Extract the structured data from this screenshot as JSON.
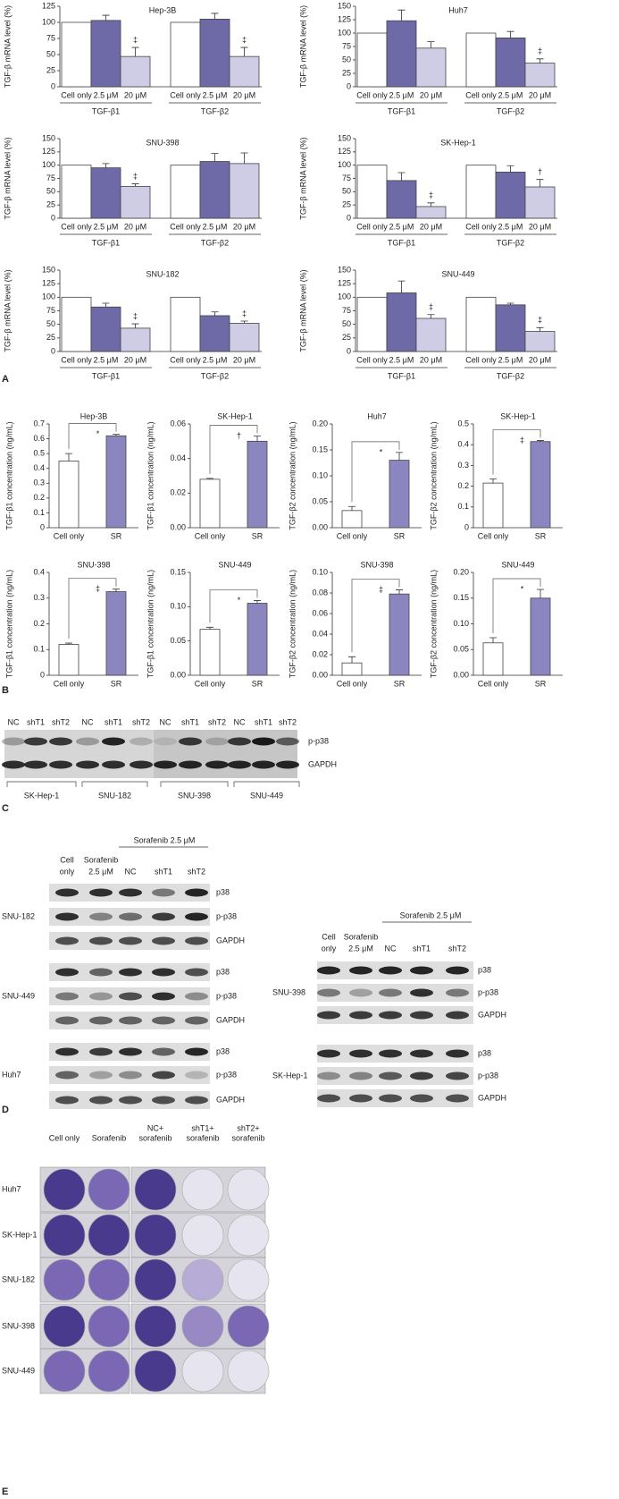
{
  "chart_data": [
    {
      "type": "bar",
      "title": "Hep-3B",
      "ylabel": "TGF-β mRNA level (%)",
      "ylim": [
        0,
        125
      ],
      "yticks": [
        0,
        25,
        50,
        75,
        100,
        125
      ],
      "categories": [
        "Cell only",
        "2.5 μM",
        "20 μM",
        "Cell only",
        "2.5 μM",
        "20 μM"
      ],
      "groups": [
        "TGF-β1",
        "TGF-β2"
      ],
      "values": [
        100,
        103,
        47,
        100,
        105,
        47
      ],
      "errors": [
        null,
        8,
        14,
        null,
        9,
        14
      ],
      "colors": [
        "#ffffff",
        "#6e6aa8",
        "#cfcde6",
        "#ffffff",
        "#6e6aa8",
        "#cfcde6"
      ],
      "annotations": [
        null,
        null,
        "‡",
        null,
        null,
        "‡"
      ]
    },
    {
      "type": "bar",
      "title": "Huh7",
      "ylabel": "TGF-β mRNA level (%)",
      "ylim": [
        0,
        150
      ],
      "yticks": [
        0,
        25,
        50,
        75,
        100,
        125,
        150
      ],
      "categories": [
        "Cell only",
        "2.5 μM",
        "20 μM",
        "Cell only",
        "2.5 μM",
        "20 μM"
      ],
      "groups": [
        "TGF-β1",
        "TGF-β2"
      ],
      "values": [
        100,
        123,
        72,
        100,
        91,
        44
      ],
      "errors": [
        null,
        20,
        12,
        null,
        12,
        8
      ],
      "colors": [
        "#ffffff",
        "#6e6aa8",
        "#cfcde6",
        "#ffffff",
        "#6e6aa8",
        "#cfcde6"
      ],
      "annotations": [
        null,
        null,
        null,
        null,
        null,
        "‡"
      ]
    },
    {
      "type": "bar",
      "title": "SNU-398",
      "ylabel": "TGF-β mRNA level (%)",
      "ylim": [
        0,
        150
      ],
      "yticks": [
        0,
        25,
        50,
        75,
        100,
        125,
        150
      ],
      "categories": [
        "Cell only",
        "2.5 μM",
        "20 μM",
        "Cell only",
        "2.5 μM",
        "20 μM"
      ],
      "groups": [
        "TGF-β1",
        "TGF-β2"
      ],
      "values": [
        100,
        95,
        60,
        100,
        107,
        103
      ],
      "errors": [
        null,
        8,
        5,
        null,
        15,
        20
      ],
      "colors": [
        "#ffffff",
        "#6e6aa8",
        "#cfcde6",
        "#ffffff",
        "#6e6aa8",
        "#cfcde6"
      ],
      "annotations": [
        null,
        null,
        "‡",
        null,
        null,
        null
      ]
    },
    {
      "type": "bar",
      "title": "SK-Hep-1",
      "ylabel": "TGF-β mRNA level (%)",
      "ylim": [
        0,
        150
      ],
      "yticks": [
        0,
        25,
        50,
        75,
        100,
        125,
        150
      ],
      "categories": [
        "Cell only",
        "2.5 μM",
        "20 μM",
        "Cell only",
        "2.5 μM",
        "20 μM"
      ],
      "groups": [
        "TGF-β1",
        "TGF-β2"
      ],
      "values": [
        100,
        71,
        22,
        100,
        87,
        59
      ],
      "errors": [
        null,
        15,
        7,
        null,
        12,
        14
      ],
      "colors": [
        "#ffffff",
        "#6e6aa8",
        "#cfcde6",
        "#ffffff",
        "#6e6aa8",
        "#cfcde6"
      ],
      "annotations": [
        null,
        null,
        "‡",
        null,
        null,
        "†"
      ]
    },
    {
      "type": "bar",
      "title": "SNU-182",
      "ylabel": "TGF-β mRNA level (%)",
      "ylim": [
        0,
        150
      ],
      "yticks": [
        0,
        25,
        50,
        75,
        100,
        125,
        150
      ],
      "categories": [
        "Cell only",
        "2.5 μM",
        "20 μM",
        "Cell only",
        "2.5 μM",
        "20 μM"
      ],
      "groups": [
        "TGF-β1",
        "TGF-β2"
      ],
      "values": [
        100,
        82,
        43,
        100,
        66,
        52
      ],
      "errors": [
        null,
        7,
        8,
        null,
        7,
        4
      ],
      "colors": [
        "#ffffff",
        "#6e6aa8",
        "#cfcde6",
        "#ffffff",
        "#6e6aa8",
        "#cfcde6"
      ],
      "annotations": [
        null,
        null,
        "‡",
        null,
        null,
        "‡"
      ]
    },
    {
      "type": "bar",
      "title": "SNU-449",
      "ylabel": "TGF-β mRNA level (%)",
      "ylim": [
        0,
        150
      ],
      "yticks": [
        0,
        25,
        50,
        75,
        100,
        125,
        150
      ],
      "categories": [
        "Cell only",
        "2.5 μM",
        "20 μM",
        "Cell only",
        "2.5 μM",
        "20 μM"
      ],
      "groups": [
        "TGF-β1",
        "TGF-β2"
      ],
      "values": [
        100,
        108,
        61,
        100,
        86,
        37
      ],
      "errors": [
        null,
        22,
        7,
        null,
        3,
        7
      ],
      "colors": [
        "#ffffff",
        "#6e6aa8",
        "#cfcde6",
        "#ffffff",
        "#6e6aa8",
        "#cfcde6"
      ],
      "annotations": [
        null,
        null,
        "‡",
        null,
        null,
        "‡"
      ]
    },
    {
      "type": "bar",
      "title": "Hep-3B",
      "ylabel": "TGF-β1 concentration (ng/mL)",
      "ylim": [
        0,
        0.7
      ],
      "yticks": [
        0,
        0.1,
        0.2,
        0.3,
        0.4,
        0.5,
        0.6,
        0.7
      ],
      "categories": [
        "Cell only",
        "SR"
      ],
      "values": [
        0.45,
        0.62
      ],
      "errors": [
        0.05,
        0.01
      ],
      "colors": [
        "#ffffff",
        "#8b86c0"
      ],
      "annotation": "*"
    },
    {
      "type": "bar",
      "title": "SK-Hep-1",
      "ylabel": "TGF-β1 concentration (ng/mL)",
      "ylim": [
        0,
        0.06
      ],
      "yticks": [
        {
          "value": 0,
          "label": "0.00"
        },
        0.02,
        0.04,
        0.06
      ],
      "categories": [
        "Cell only",
        "SR"
      ],
      "values": [
        0.028,
        0.05
      ],
      "errors": [
        0.0005,
        0.003
      ],
      "colors": [
        "#ffffff",
        "#8b86c0"
      ],
      "annotation": "†"
    },
    {
      "type": "bar",
      "title": "Huh7",
      "ylabel": "TGF-β2 concentration (ng/mL)",
      "ylim": [
        0,
        0.2
      ],
      "yticks": [
        {
          "value": 0,
          "label": "0.00"
        },
        0.05,
        {
          "value": 0.1,
          "label": "0.10"
        },
        0.15,
        {
          "value": 0.2,
          "label": "0.20"
        }
      ],
      "categories": [
        "Cell only",
        "SR"
      ],
      "values": [
        0.033,
        0.13
      ],
      "errors": [
        0.008,
        0.015
      ],
      "colors": [
        "#ffffff",
        "#8b86c0"
      ],
      "annotation": "*"
    },
    {
      "type": "bar",
      "title": "SK-Hep-1",
      "ylabel": "TGF-β2 concentration (ng/mL)",
      "ylim": [
        0,
        0.5
      ],
      "yticks": [
        0,
        0.1,
        0.2,
        0.3,
        0.4,
        0.5
      ],
      "categories": [
        "Cell only",
        "SR"
      ],
      "values": [
        0.215,
        0.415
      ],
      "errors": [
        0.02,
        0.005
      ],
      "colors": [
        "#ffffff",
        "#8b86c0"
      ],
      "annotation": "‡"
    },
    {
      "type": "bar",
      "title": "SNU-398",
      "ylabel": "TGF-β1 concentration (ng/mL)",
      "ylim": [
        0,
        0.4
      ],
      "yticks": [
        0,
        0.1,
        0.2,
        0.3,
        0.4
      ],
      "categories": [
        "Cell only",
        "SR"
      ],
      "values": [
        0.12,
        0.325
      ],
      "errors": [
        0.005,
        0.01
      ],
      "colors": [
        "#ffffff",
        "#8b86c0"
      ],
      "annotation": "‡"
    },
    {
      "type": "bar",
      "title": "SNU-449",
      "ylabel": "TGF-β1 concentration (ng/mL)",
      "ylim": [
        0,
        0.15
      ],
      "yticks": [
        {
          "value": 0,
          "label": "0.00"
        },
        0.05,
        {
          "value": 0.1,
          "label": "0.10"
        },
        0.15
      ],
      "categories": [
        "Cell only",
        "SR"
      ],
      "values": [
        0.067,
        0.105
      ],
      "errors": [
        0.003,
        0.004
      ],
      "colors": [
        "#ffffff",
        "#8b86c0"
      ],
      "annotation": "*"
    },
    {
      "type": "bar",
      "title": "SNU-398",
      "ylabel": "TGF-β2 concentration (ng/mL)",
      "ylim": [
        0,
        0.1
      ],
      "yticks": [
        {
          "value": 0,
          "label": "0.00"
        },
        0.02,
        0.04,
        0.06,
        0.08,
        {
          "value": 0.1,
          "label": "0.10"
        }
      ],
      "categories": [
        "Cell only",
        "SR"
      ],
      "values": [
        0.012,
        0.079
      ],
      "errors": [
        0.006,
        0.004
      ],
      "colors": [
        "#ffffff",
        "#8b86c0"
      ],
      "annotation": "‡"
    },
    {
      "type": "bar",
      "title": "SNU-449",
      "ylabel": "TGF-β2 concentration (ng/mL)",
      "ylim": [
        0,
        0.2
      ],
      "yticks": [
        {
          "value": 0,
          "label": "0.00"
        },
        0.05,
        {
          "value": 0.1,
          "label": "0.10"
        },
        0.15,
        {
          "value": 0.2,
          "label": "0.20"
        }
      ],
      "categories": [
        "Cell only",
        "SR"
      ],
      "values": [
        0.063,
        0.15
      ],
      "errors": [
        0.01,
        0.017
      ],
      "colors": [
        "#ffffff",
        "#8b86c0"
      ],
      "annotation": "*"
    }
  ],
  "panel_labels": [
    "A",
    "B",
    "C",
    "D",
    "E"
  ],
  "blot_c": {
    "lanes": [
      "NC",
      "shT1",
      "shT2",
      "NC",
      "shT1",
      "shT2",
      "NC",
      "shT1",
      "shT2",
      "NC",
      "shT1",
      "shT2"
    ],
    "rows": [
      "p-p38",
      "GAPDH"
    ],
    "groups": [
      "SK-Hep-1",
      "SNU-182",
      "SNU-398",
      "SNU-449"
    ]
  },
  "blot_d": {
    "treatment": "Sorafenib 2.5 μM",
    "columns": [
      [
        "Cell",
        "only"
      ],
      [
        "Sorafenib",
        "2.5 μM"
      ],
      [
        "NC"
      ],
      [
        "shT1"
      ],
      [
        "shT2"
      ]
    ],
    "rows": [
      "p38",
      "p-p38",
      "GAPDH"
    ],
    "left": [
      "SNU-182",
      "SNU-449",
      "Huh7"
    ],
    "right": [
      "SNU-398",
      "SK-Hep-1"
    ]
  },
  "colony": {
    "columns": [
      [
        "Cell only"
      ],
      [
        "Sorafenib"
      ],
      [
        "NC+",
        "sorafenib"
      ],
      [
        "shT1+",
        "sorafenib"
      ],
      [
        "shT2+",
        "sorafenib"
      ]
    ],
    "rows": [
      "Huh7",
      "SK-Hep-1",
      "SNU-182",
      "SNU-398",
      "SNU-449"
    ]
  }
}
